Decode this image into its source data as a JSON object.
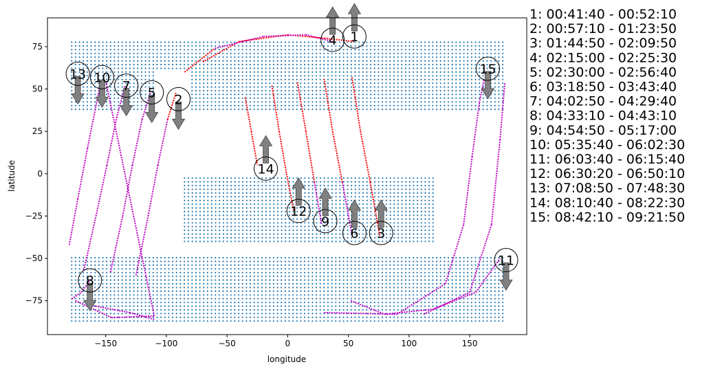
{
  "chart_data": {
    "type": "scatter",
    "xlabel": "longitude",
    "ylabel": "latitude",
    "xlim": [
      -198,
      197
    ],
    "ylim": [
      -95,
      92
    ],
    "xticks": [
      -150,
      -100,
      -50,
      0,
      50,
      100,
      150
    ],
    "yticks": [
      -75,
      -50,
      -25,
      0,
      25,
      50,
      75
    ],
    "grid": false,
    "colors": {
      "coverage": "#1f77b4",
      "track_in": "#ff0000",
      "track_out": "#bf00bf",
      "arrow": "#808080"
    },
    "coverage_regions": [
      {
        "y_min": 38,
        "y_max": 78,
        "x_min": -178,
        "x_max": 180,
        "gap": [
          -108,
          -82
        ]
      },
      {
        "y_min": -40,
        "y_max": -2,
        "x_min": -85,
        "x_max": 120
      },
      {
        "y_min": -87,
        "y_max": -48,
        "x_min": -178,
        "x_max": 180
      }
    ],
    "passes": [
      {
        "id": "1",
        "time": "00:41:40 - 00:52:10",
        "marker": [
          55,
          81
        ],
        "direction": "up",
        "track": [
          {
            "x": -70,
            "y": 66,
            "c": "out"
          },
          {
            "x": -40,
            "y": 78,
            "c": "in"
          },
          {
            "x": 0,
            "y": 82,
            "c": "in"
          },
          {
            "x": 30,
            "y": 80,
            "c": "in"
          },
          {
            "x": 55,
            "y": 78,
            "c": "in"
          }
        ]
      },
      {
        "id": "2",
        "time": "00:57:10 - 01:23:50",
        "marker": [
          -90,
          44
        ],
        "direction": "down",
        "track": [
          {
            "x": -125,
            "y": -60,
            "c": "out"
          },
          {
            "x": -115,
            "y": -25,
            "c": "out"
          },
          {
            "x": -107,
            "y": 5,
            "c": "out"
          },
          {
            "x": -99,
            "y": 32,
            "c": "out"
          },
          {
            "x": -92,
            "y": 48,
            "c": "in"
          }
        ]
      },
      {
        "id": "3",
        "time": "01:44:50 - 02:09:50",
        "marker": [
          77,
          -35
        ],
        "direction": "up",
        "track": [
          {
            "x": 53,
            "y": 57,
            "c": "in"
          },
          {
            "x": 60,
            "y": 25,
            "c": "in"
          },
          {
            "x": 68,
            "y": -5,
            "c": "in"
          },
          {
            "x": 76,
            "y": -37,
            "c": "in"
          }
        ]
      },
      {
        "id": "4",
        "time": "02:15:00 - 02:25:30",
        "marker": [
          37,
          79
        ],
        "direction": "up",
        "track": [
          {
            "x": -85,
            "y": 60,
            "c": "in"
          },
          {
            "x": -60,
            "y": 74,
            "c": "in"
          },
          {
            "x": -20,
            "y": 81,
            "c": "out"
          },
          {
            "x": 15,
            "y": 82,
            "c": "out"
          },
          {
            "x": 37,
            "y": 78,
            "c": "out"
          }
        ]
      },
      {
        "id": "5",
        "time": "02:30:00 - 02:56:40",
        "marker": [
          -112,
          48
        ],
        "direction": "down",
        "track": [
          {
            "x": -146,
            "y": -58,
            "c": "out"
          },
          {
            "x": -136,
            "y": -25,
            "c": "out"
          },
          {
            "x": -128,
            "y": 5,
            "c": "out"
          },
          {
            "x": -120,
            "y": 32,
            "c": "out"
          },
          {
            "x": -113,
            "y": 48,
            "c": "out"
          }
        ]
      },
      {
        "id": "6",
        "time": "03:18:50 - 03:43:40",
        "marker": [
          55,
          -35
        ],
        "direction": "up",
        "track": [
          {
            "x": 30,
            "y": 56,
            "c": "in"
          },
          {
            "x": 37,
            "y": 25,
            "c": "in"
          },
          {
            "x": 45,
            "y": -5,
            "c": "in"
          },
          {
            "x": 53,
            "y": -36,
            "c": "out"
          }
        ]
      },
      {
        "id": "7",
        "time": "04:02:50 - 04:29:40",
        "marker": [
          -133,
          52
        ],
        "direction": "down",
        "track": [
          {
            "x": -168,
            "y": -57,
            "c": "out"
          },
          {
            "x": -158,
            "y": -25,
            "c": "out"
          },
          {
            "x": -149,
            "y": 5,
            "c": "out"
          },
          {
            "x": -141,
            "y": 33,
            "c": "out"
          },
          {
            "x": -134,
            "y": 52,
            "c": "out"
          }
        ]
      },
      {
        "id": "8",
        "time": "04:33:10 - 04:43:10",
        "marker": [
          -163,
          -63
        ],
        "direction": "down",
        "track": [
          {
            "x": -178,
            "y": -74,
            "c": "out"
          },
          {
            "x": -170,
            "y": -70,
            "c": "out"
          },
          {
            "x": -162,
            "y": -62,
            "c": "out"
          }
        ]
      },
      {
        "id": "9",
        "time": "04:54:50 - 05:17:00",
        "marker": [
          31,
          -28
        ],
        "direction": "up",
        "track": [
          {
            "x": 8,
            "y": 54,
            "c": "in"
          },
          {
            "x": 15,
            "y": 25,
            "c": "in"
          },
          {
            "x": 22,
            "y": -5,
            "c": "in"
          },
          {
            "x": 28,
            "y": -30,
            "c": "out"
          }
        ]
      },
      {
        "id": "10",
        "time": "05:35:40 - 06:02:30",
        "marker": [
          -153,
          57
        ],
        "direction": "down",
        "track": [
          {
            "x": -180,
            "y": -42,
            "c": "out"
          },
          {
            "x": -173,
            "y": -15,
            "c": "out"
          },
          {
            "x": -165,
            "y": 15,
            "c": "out"
          },
          {
            "x": -158,
            "y": 40,
            "c": "out"
          },
          {
            "x": -154,
            "y": 55,
            "c": "out"
          }
        ]
      },
      {
        "id": "11",
        "time": "06:03:40 - 06:15:40",
        "marker": [
          180,
          -51
        ],
        "direction": "down",
        "track": [
          {
            "x": 52,
            "y": -75,
            "c": "out"
          },
          {
            "x": 80,
            "y": -83,
            "c": "out"
          },
          {
            "x": 120,
            "y": -80,
            "c": "out"
          },
          {
            "x": 155,
            "y": -70,
            "c": "out"
          },
          {
            "x": 175,
            "y": -50,
            "c": "out"
          }
        ]
      },
      {
        "id": "12",
        "time": "06:30:20 - 06:50:10",
        "marker": [
          9,
          -22
        ],
        "direction": "up",
        "track": [
          {
            "x": -13,
            "y": 52,
            "c": "in"
          },
          {
            "x": -7,
            "y": 25,
            "c": "in"
          },
          {
            "x": -1,
            "y": 0,
            "c": "in"
          },
          {
            "x": 5,
            "y": -22,
            "c": "in"
          }
        ]
      },
      {
        "id": "13",
        "time": "07:08:50 - 07:48:30",
        "marker": [
          -173,
          59
        ],
        "direction": "down",
        "track": [
          {
            "x": -175,
            "y": -75,
            "c": "out"
          },
          {
            "x": -145,
            "y": -85,
            "c": "out"
          },
          {
            "x": -110,
            "y": -84,
            "c": "out"
          },
          {
            "x": -150,
            "y": 55,
            "c": "out"
          }
        ]
      },
      {
        "id": "14",
        "time": "08:10:40 - 08:22:30",
        "marker": [
          -18,
          3
        ],
        "direction": "up",
        "track": [
          {
            "x": -35,
            "y": 45,
            "c": "in"
          },
          {
            "x": -30,
            "y": 25,
            "c": "in"
          },
          {
            "x": -25,
            "y": 5,
            "c": "in"
          }
        ]
      },
      {
        "id": "15",
        "time": "08:42:10 - 09:21:50",
        "marker": [
          165,
          62
        ],
        "direction": "down",
        "track": [
          {
            "x": 30,
            "y": -82,
            "c": "out"
          },
          {
            "x": 90,
            "y": -83,
            "c": "out"
          },
          {
            "x": 130,
            "y": -65,
            "c": "out"
          },
          {
            "x": 145,
            "y": -30,
            "c": "out"
          },
          {
            "x": 152,
            "y": 10,
            "c": "out"
          },
          {
            "x": 158,
            "y": 42,
            "c": "out"
          },
          {
            "x": 162,
            "y": 56,
            "c": "out"
          }
        ]
      }
    ],
    "extra_tracks": [
      [
        {
          "x": 112,
          "y": -83,
          "c": "out"
        },
        {
          "x": 150,
          "y": -70,
          "c": "out"
        },
        {
          "x": 168,
          "y": -30,
          "c": "out"
        },
        {
          "x": 175,
          "y": 20,
          "c": "out"
        },
        {
          "x": 179,
          "y": 54,
          "c": "out"
        }
      ],
      [
        {
          "x": -110,
          "y": -86,
          "c": "out"
        },
        {
          "x": -130,
          "y": -82,
          "c": "out"
        },
        {
          "x": -160,
          "y": -78,
          "c": "out"
        }
      ]
    ]
  }
}
